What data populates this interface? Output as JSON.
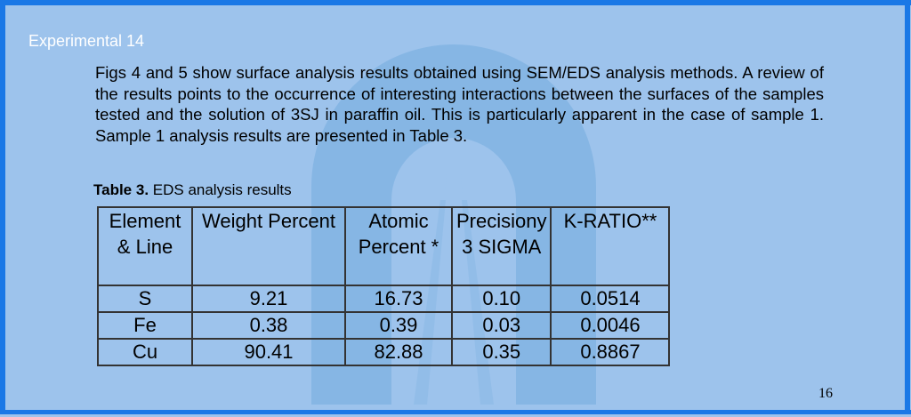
{
  "slide": {
    "heading": "Experimental 14",
    "paragraph": "Figs 4 and 5 show surface analysis results obtained using SEM/EDS analysis methods. A review of the results points to the occurrence of interesting interactions between the surfaces of the samples tested and the solution of 3SJ in paraffin oil. This is particularly apparent in the case of sample 1. Sample 1 analysis results are presented in Table 3.",
    "caption_label": "Table 3.",
    "caption_text": " EDS analysis results",
    "page_number": "16"
  },
  "table": {
    "headers": [
      "Element & Line",
      "Weight Percent",
      "Atomic Percent *",
      "Precisiony 3 SIGMA",
      "K-RATIO**"
    ],
    "rows": [
      [
        "S",
        "9.21",
        "16.73",
        "0.10",
        "0.0514"
      ],
      [
        "Fe",
        "0.38",
        "0.39",
        "0.03",
        "0.0046"
      ],
      [
        "Cu",
        "90.41",
        "82.88",
        "0.35",
        "0.8867"
      ]
    ]
  },
  "colors": {
    "background": "#9dc3ec",
    "frame": "#1a78e6",
    "watermark": "#7fb0e2"
  },
  "icons": {
    "watermark": "university-logo-watermark"
  }
}
